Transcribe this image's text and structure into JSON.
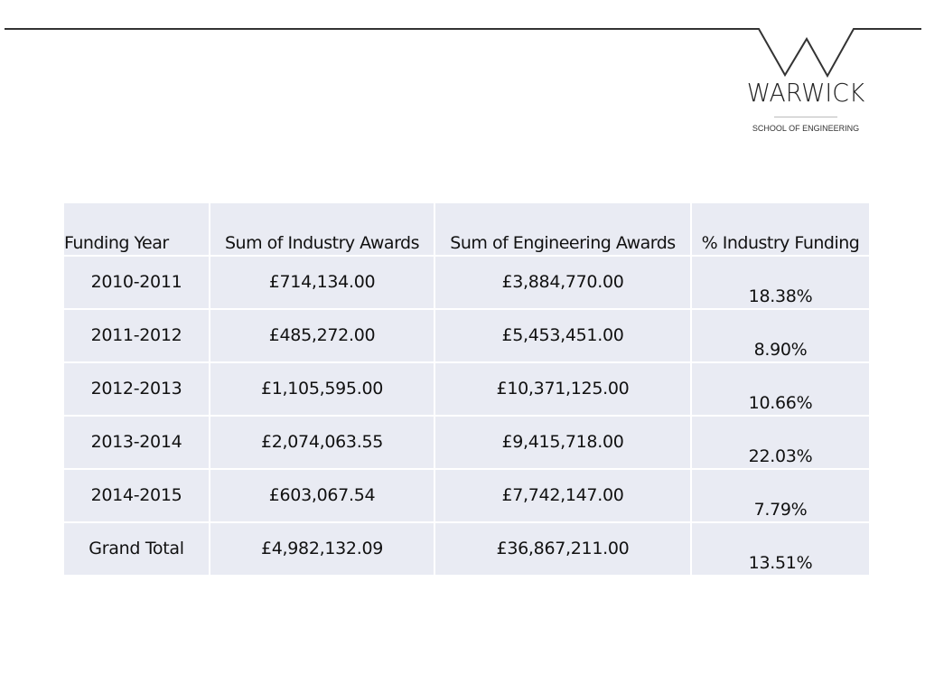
{
  "logo": {
    "name": "WARWICK",
    "subtitle": "SCHOOL OF ENGINEERING"
  },
  "table": {
    "headers": [
      "Funding Year",
      "Sum of Industry Awards",
      "Sum of Engineering Awards",
      "% Industry Funding"
    ],
    "rows": [
      [
        "2010-2011",
        "£714,134.00",
        "£3,884,770.00",
        "18.38%"
      ],
      [
        "2011-2012",
        "£485,272.00",
        "£5,453,451.00",
        "8.90%"
      ],
      [
        "2012-2013",
        "£1,105,595.00",
        "£10,371,125.00",
        "10.66%"
      ],
      [
        "2013-2014",
        "£2,074,063.55",
        "£9,415,718.00",
        "22.03%"
      ],
      [
        "2014-2015",
        "£603,067.54",
        "£7,742,147.00",
        "7.79%"
      ],
      [
        "Grand Total",
        "£4,982,132.09",
        "£36,867,211.00",
        "13.51%"
      ]
    ]
  }
}
